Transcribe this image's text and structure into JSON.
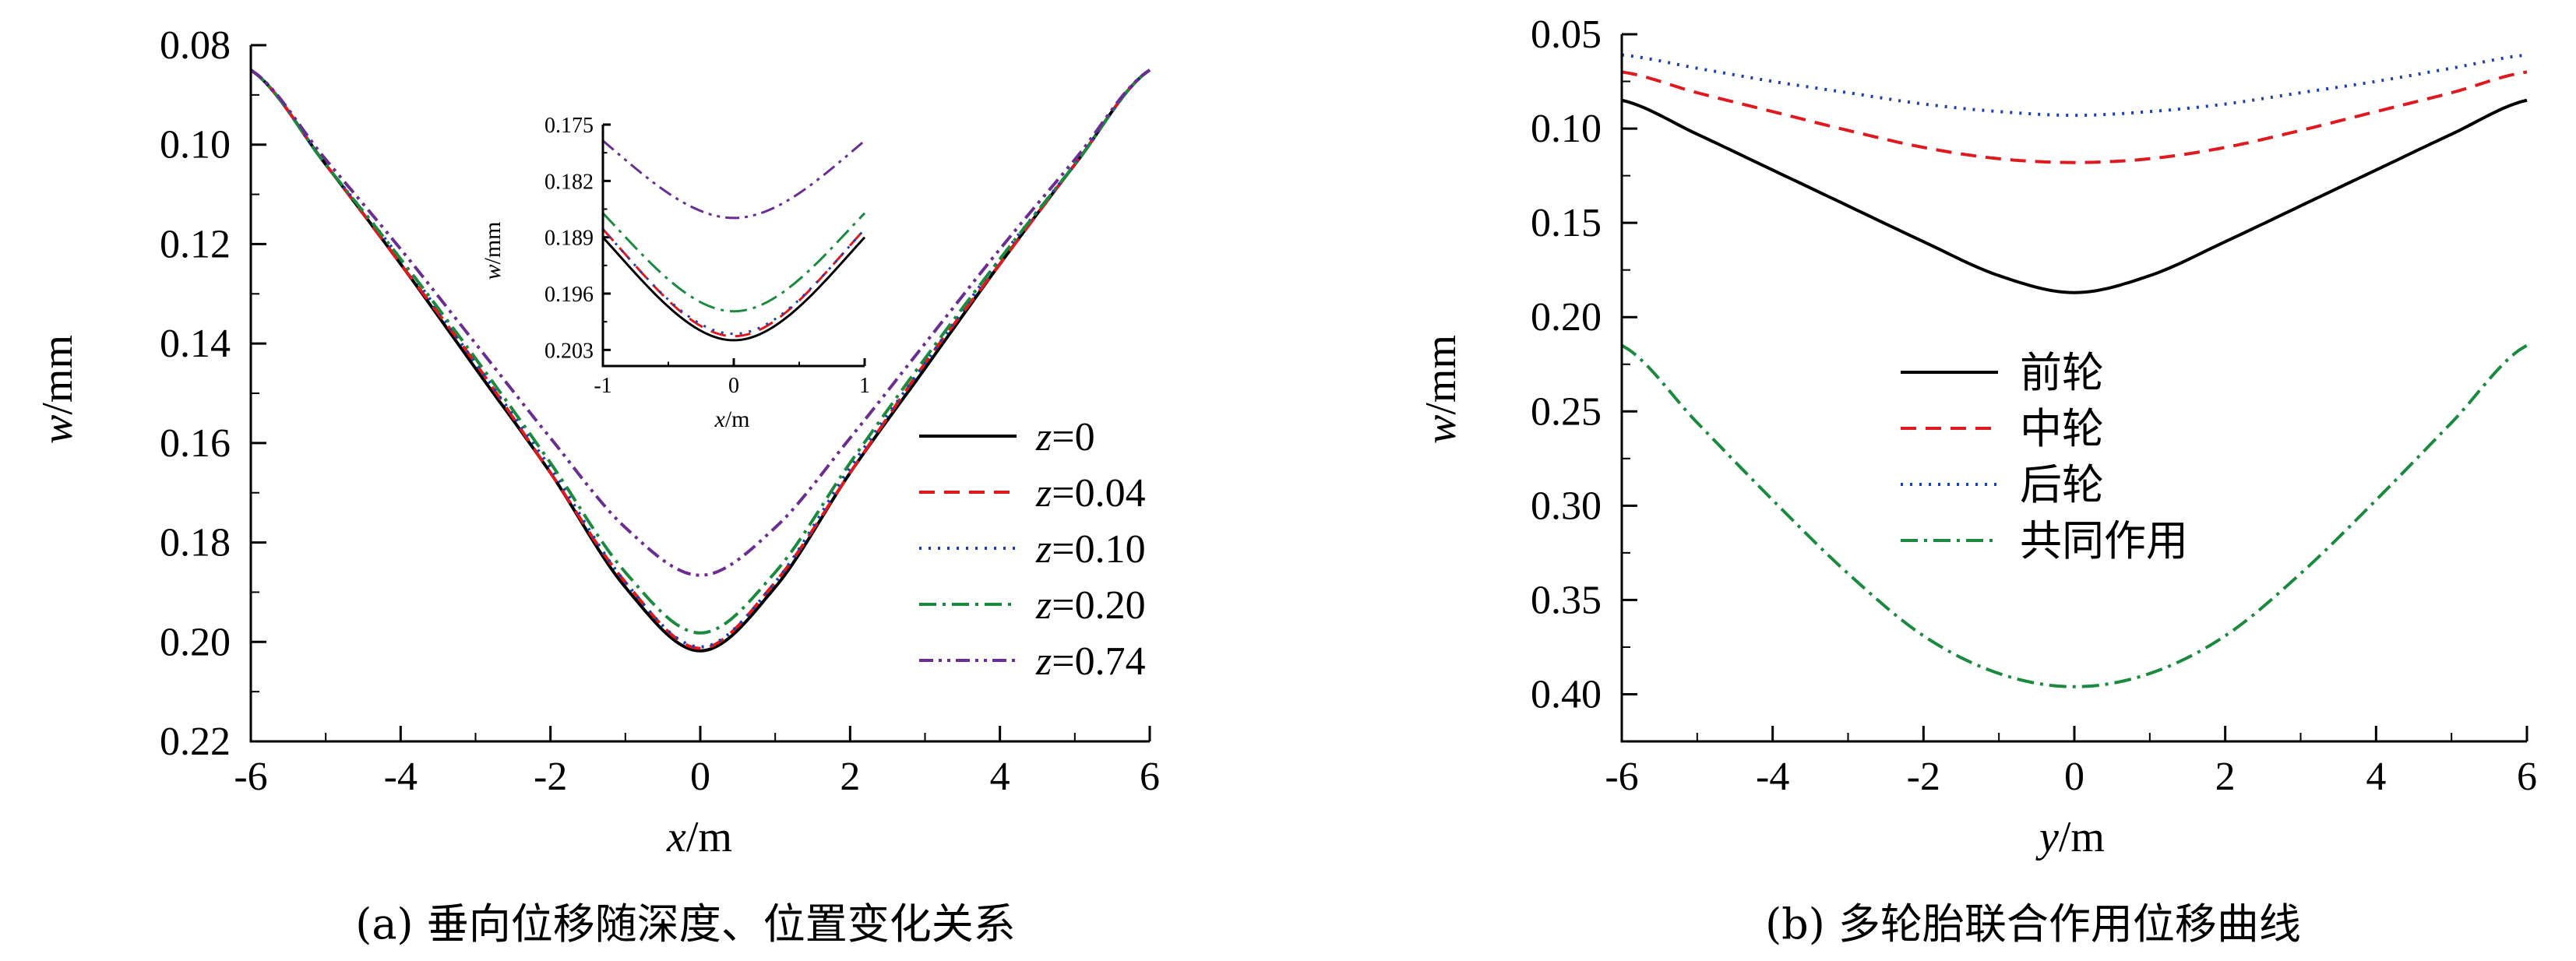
{
  "chart_data": [
    {
      "type": "line",
      "caption": "(a) 垂向位移随深度、位置变化关系",
      "xlabel": "x/m",
      "ylabel": "w/mm",
      "xlim": [
        -6,
        6
      ],
      "ylim": [
        0.08,
        0.22
      ],
      "y_inverted": true,
      "xticks": [
        "-6",
        "-4",
        "-2",
        "0",
        "2",
        "4",
        "6"
      ],
      "yticks": [
        "0.08",
        "0.10",
        "0.12",
        "0.14",
        "0.16",
        "0.18",
        "0.20",
        "0.22"
      ],
      "legend_position": "right",
      "x": [
        -6,
        -5,
        -4,
        -3,
        -2,
        -1,
        0,
        1,
        2,
        3,
        4,
        5,
        6
      ],
      "series": [
        {
          "name": "z=0",
          "name_var": "z",
          "name_val": "=0",
          "color": "#000000",
          "dash": "",
          "values": [
            0.085,
            0.104,
            0.124,
            0.145,
            0.166,
            0.189,
            0.2018,
            0.189,
            0.166,
            0.145,
            0.124,
            0.104,
            0.085
          ]
        },
        {
          "name": "z=0.04",
          "name_var": "z",
          "name_val": "=0.04",
          "color": "#e0191f",
          "dash": "20,12",
          "values": [
            0.085,
            0.104,
            0.124,
            0.144,
            0.166,
            0.188,
            0.2013,
            0.188,
            0.166,
            0.144,
            0.124,
            0.104,
            0.085
          ]
        },
        {
          "name": "z=0.10",
          "name_var": "z",
          "name_val": "=0.10",
          "color": "#1f3fae",
          "dash": "3,9",
          "values": [
            0.085,
            0.104,
            0.123,
            0.144,
            0.165,
            0.188,
            0.201,
            0.188,
            0.165,
            0.144,
            0.123,
            0.104,
            0.085
          ]
        },
        {
          "name": "z=0.20",
          "name_var": "z",
          "name_val": "=0.20",
          "color": "#1a8a3e",
          "dash": "22,8,4,8",
          "values": [
            0.085,
            0.104,
            0.123,
            0.143,
            0.164,
            0.186,
            0.1982,
            0.186,
            0.164,
            0.143,
            0.123,
            0.104,
            0.085
          ]
        },
        {
          "name": "z=0.74",
          "name_var": "z",
          "name_val": "=0.74",
          "color": "#6a2d91",
          "dash": "18,7,4,7,4,7",
          "values": [
            0.085,
            0.103,
            0.121,
            0.14,
            0.159,
            0.177,
            0.1866,
            0.177,
            0.159,
            0.14,
            0.121,
            0.103,
            0.085
          ]
        }
      ],
      "inset": {
        "xlabel": "x/m",
        "ylabel": "w/mm",
        "xlim": [
          -1,
          1
        ],
        "ylim": [
          0.175,
          0.205
        ],
        "y_inverted": true,
        "xticks": [
          "-1",
          "0",
          "1"
        ],
        "yticks": [
          "0.175",
          "0.182",
          "0.189",
          "0.196",
          "0.203"
        ]
      }
    },
    {
      "type": "line",
      "caption": "(b) 多轮胎联合作用位移曲线",
      "xlabel": "y/m",
      "ylabel": "w/mm",
      "xlim": [
        -6,
        6
      ],
      "ylim": [
        0.05,
        0.425
      ],
      "y_inverted": true,
      "xticks": [
        "-6",
        "-4",
        "-2",
        "0",
        "2",
        "4",
        "6"
      ],
      "yticks": [
        "0.05",
        "0.10",
        "0.15",
        "0.20",
        "0.25",
        "0.30",
        "0.35",
        "0.40"
      ],
      "legend_position": "center-left",
      "x": [
        -6,
        -5,
        -4,
        -3,
        -2,
        -1,
        0,
        1,
        2,
        3,
        4,
        5,
        6
      ],
      "series": [
        {
          "name": "前轮",
          "color": "#000000",
          "dash": "",
          "values": [
            0.085,
            0.103,
            0.122,
            0.141,
            0.16,
            0.178,
            0.187,
            0.178,
            0.16,
            0.141,
            0.122,
            0.103,
            0.085
          ]
        },
        {
          "name": "中轮",
          "color": "#e0191f",
          "dash": "20,12",
          "values": [
            0.07,
            0.081,
            0.091,
            0.101,
            0.11,
            0.116,
            0.118,
            0.116,
            0.11,
            0.101,
            0.091,
            0.081,
            0.07
          ]
        },
        {
          "name": "后轮",
          "color": "#1f3fae",
          "dash": "3,9",
          "values": [
            0.061,
            0.068,
            0.075,
            0.081,
            0.087,
            0.091,
            0.093,
            0.091,
            0.087,
            0.081,
            0.075,
            0.068,
            0.061
          ]
        },
        {
          "name": "共同作用",
          "color": "#1a8a3e",
          "dash": "22,8,4,8",
          "values": [
            0.215,
            0.256,
            0.297,
            0.336,
            0.369,
            0.389,
            0.396,
            0.389,
            0.369,
            0.336,
            0.297,
            0.256,
            0.215
          ]
        }
      ]
    }
  ]
}
